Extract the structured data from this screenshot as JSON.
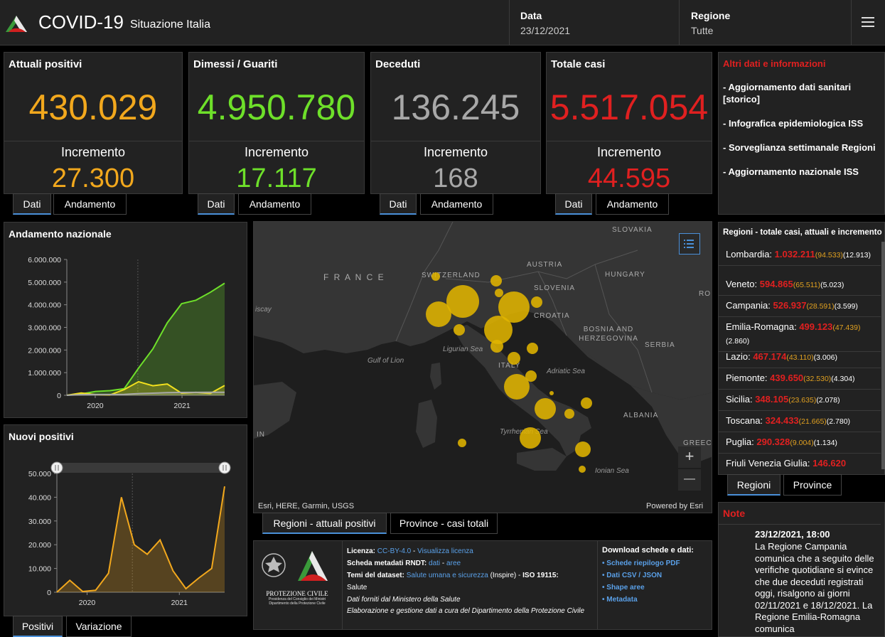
{
  "header": {
    "title": "COVID-19",
    "subtitle": "Situazione Italia",
    "date_label": "Data",
    "date_value": "23/12/2021",
    "region_label": "Regione",
    "region_value": "Tutte"
  },
  "cards": [
    {
      "title": "Attuali positivi",
      "value": "430.029",
      "inc_label": "Incremento",
      "inc_value": "27.300",
      "color": "#f2a81d"
    },
    {
      "title": "Dimessi / Guariti",
      "value": "4.950.780",
      "inc_label": "Incremento",
      "inc_value": "17.117",
      "color": "#6ee02a"
    },
    {
      "title": "Deceduti",
      "value": "136.245",
      "inc_label": "Incremento",
      "inc_value": "168",
      "color": "#a8a8a8"
    },
    {
      "title": "Totale casi",
      "value": "5.517.054",
      "inc_label": "Incremento",
      "inc_value": "44.595",
      "color": "#e02020"
    }
  ],
  "card_tabs": {
    "dati": "Dati",
    "andamento": "Andamento"
  },
  "links": {
    "title": "Altri dati e informazioni",
    "items": [
      "- Aggiornamento dati sanitari [storico]",
      "- Infografica epidemiologica ISS",
      "- Sorveglianza settimanale Regioni",
      "- Aggiornamento nazionale ISS"
    ]
  },
  "regions": {
    "title": "Regioni - totale casi, attuali e incremento",
    "rows": [
      {
        "name": "Lombardia:",
        "total": "1.032.211",
        "inc": "(94.533)",
        "dead": "(12.913)"
      },
      {
        "name": "Veneto:",
        "total": "594.865",
        "inc": "(65.511)",
        "dead": "(5.023)"
      },
      {
        "name": "Campania:",
        "total": "526.937",
        "inc": "(28.591)",
        "dead": "(3.599)"
      },
      {
        "name": "Emilia-Romagna:",
        "total": "499.123",
        "inc": "(47.439)",
        "dead": "(2.860)"
      },
      {
        "name": "Lazio:",
        "total": "467.174",
        "inc": "(43.110)",
        "dead": "(3.006)"
      },
      {
        "name": "Piemonte:",
        "total": "439.650",
        "inc": "(32.530)",
        "dead": "(4.304)"
      },
      {
        "name": "Sicilia:",
        "total": "348.105",
        "inc": "(23.635)",
        "dead": "(2.078)"
      },
      {
        "name": "Toscana:",
        "total": "324.433",
        "inc": "(21.665)",
        "dead": "(2.780)"
      },
      {
        "name": "Puglia:",
        "total": "290.328",
        "inc": "(9.004)",
        "dead": "(1.134)"
      },
      {
        "name": "Friuli Venezia Giulia:",
        "total": "146.620",
        "inc": "",
        "dead": ""
      }
    ],
    "tabs": [
      "Regioni",
      "Province"
    ]
  },
  "map": {
    "tabs": [
      "Regioni - attuali positivi",
      "Province - casi totali"
    ],
    "attribution_left": "Esri, HERE, Garmin, USGS",
    "attribution_right": "Powered by Esri",
    "zoom_in": "+",
    "zoom_out": "—",
    "countries": [
      "SLOVAKIA",
      "F R A N C E",
      "SWITZERLAND",
      "AUSTRIA",
      "HUNGARY",
      "SLOVENIA",
      "CROATIA",
      "BOSNIA AND HERZEGOVINA",
      "SERBIA",
      "ITALY",
      "ALBANIA",
      "GREECE",
      "RO",
      "IN"
    ],
    "seas": [
      "Ligurian Sea",
      "Gulf of Lion",
      "Adriatic Sea",
      "Tyrrhenian Sea",
      "Ionian Sea",
      "iscay"
    ],
    "accent": "#e0b400"
  },
  "chart_national": {
    "title": "Andamento nazionale",
    "chart_data": {
      "type": "area",
      "title": "Andamento nazionale",
      "x": [
        "2020-02",
        "2020-04",
        "2020-06",
        "2020-08",
        "2020-10",
        "2020-12",
        "2021-02",
        "2021-04",
        "2021-06",
        "2021-08",
        "2021-10",
        "2021-12"
      ],
      "xticks": [
        "2020",
        "2021"
      ],
      "yticks": [
        "0",
        "1.000.000",
        "2.000.000",
        "3.000.000",
        "4.000.000",
        "5.000.000",
        "6.000.000"
      ],
      "ylim": [
        0,
        6000000
      ],
      "series": [
        {
          "name": "Dimessi / Guariti",
          "color": "#6ee02a",
          "values": [
            0,
            60000,
            170000,
            205000,
            290000,
            1200000,
            2050000,
            3200000,
            4050000,
            4200000,
            4550000,
            4950780
          ]
        },
        {
          "name": "Attuali positivi",
          "color": "#f2e01d",
          "values": [
            0,
            100000,
            30000,
            15000,
            250000,
            600000,
            420000,
            500000,
            90000,
            130000,
            80000,
            430029
          ]
        },
        {
          "name": "Deceduti",
          "color": "#a8a8a8",
          "values": [
            0,
            28000,
            34000,
            35000,
            38000,
            74000,
            95000,
            117000,
            127000,
            129000,
            131000,
            136245
          ]
        }
      ]
    }
  },
  "chart_new": {
    "title": "Nuovi positivi",
    "tabs": [
      "Positivi",
      "Variazione"
    ],
    "chart_data": {
      "type": "area",
      "title": "Nuovi positivi",
      "x": [
        "2020-02",
        "2020-04",
        "2020-06",
        "2020-08",
        "2020-10",
        "2020-11",
        "2020-12",
        "2021-01",
        "2021-03",
        "2021-05",
        "2021-07",
        "2021-09",
        "2021-11",
        "2021-12"
      ],
      "xticks": [
        "2020",
        "2021"
      ],
      "yticks": [
        "0",
        "10.000",
        "20.000",
        "30.000",
        "40.000",
        "50.000"
      ],
      "ylim": [
        0,
        50000
      ],
      "series": [
        {
          "name": "Nuovi positivi",
          "color": "#f2a81d",
          "values": [
            0,
            5000,
            300,
            800,
            8000,
            40000,
            20000,
            16000,
            22000,
            9000,
            1500,
            6000,
            10000,
            44595
          ]
        }
      ]
    }
  },
  "info": {
    "logo_text_1": "PROTEZIONE CIVILE",
    "logo_text_2": "Presidenza del Consiglio dei Ministri",
    "logo_text_3": "Dipartimento della Protezione Civile",
    "licenza_label": "Licenza:",
    "licenza_link": "CC-BY-4.0",
    "licenza_sep": " - ",
    "licenza_link2": "Visualizza licenza",
    "rndt_label": "Scheda metadati RNDT:",
    "rndt_link": "dati",
    "rndt_sep": " - ",
    "rndt_link2": "aree",
    "temi_label": "Temi del dataset:",
    "temi_link": "Salute umana e sicurezza",
    "temi_rest": " (Inspire) - ",
    "iso": "ISO 19115:",
    "salute": "Salute",
    "fonte": "Dati forniti dal Ministero della Salute",
    "elaborazione": "Elaborazione e gestione dati a cura del Dipartimento della Protezione Civile",
    "download_title": "Download schede e dati:",
    "downloads": [
      "• Schede riepilogo PDF",
      "• Dati CSV / JSON",
      "• Shape aree",
      "• Metadata"
    ]
  },
  "note": {
    "title": "Note",
    "date": "23/12/2021, 18:00",
    "text": "La Regione Campania comunica che a seguito delle verifiche quotidiane si evince che due deceduti registrati oggi, risalgono ai giorni 02/11/2021 e 18/12/2021. La Regione Emilia-Romagna comunica"
  }
}
